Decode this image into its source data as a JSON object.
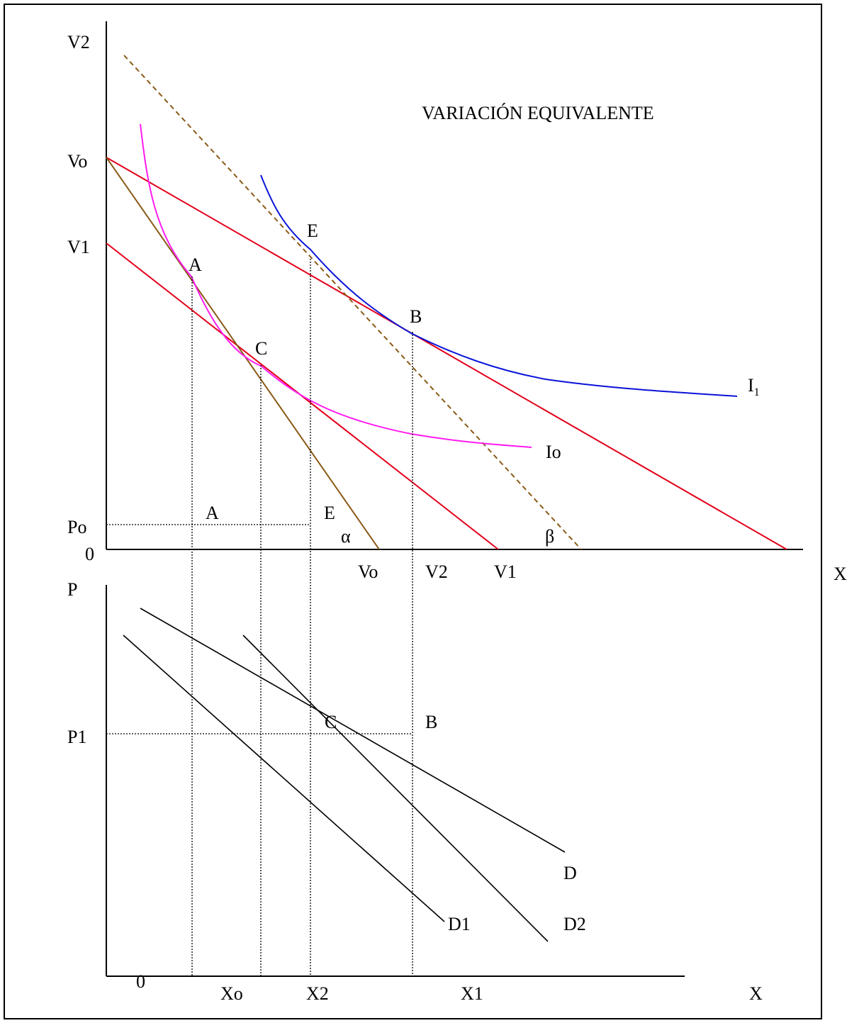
{
  "title": "VARIACIÓN EQUIVALENTE",
  "colors": {
    "budget": "#e3001b",
    "budget_rotated": "#8a5a16",
    "indiff_low": "#ff1cf0",
    "indiff_high": "#0a14d8",
    "ink": "#000000"
  },
  "upper": {
    "y_labels": {
      "v2": "V2",
      "vo": "Vo",
      "v1": "V1",
      "origin": "0"
    },
    "x_labels": {
      "vo": "Vo",
      "v2": "V2",
      "v1": "V1",
      "axis": "X"
    },
    "points": {
      "a": "A",
      "c": "C",
      "e": "E",
      "b": "B"
    },
    "angles": {
      "alpha": "α",
      "beta": "β"
    },
    "curves": {
      "io": "Io",
      "i1_main": "I",
      "i1_sub": "1"
    }
  },
  "lower": {
    "y_labels": {
      "axis": "P",
      "po": "Po",
      "p1": "P1"
    },
    "x_labels": {
      "origin": "0",
      "xo": "Xo",
      "x2": "X2",
      "x1": "X1",
      "axis": "X"
    },
    "points": {
      "a": "A",
      "e": "E",
      "c": "C",
      "b": "B"
    },
    "curves": {
      "d": "D",
      "d1": "D1",
      "d2": "D2"
    }
  }
}
